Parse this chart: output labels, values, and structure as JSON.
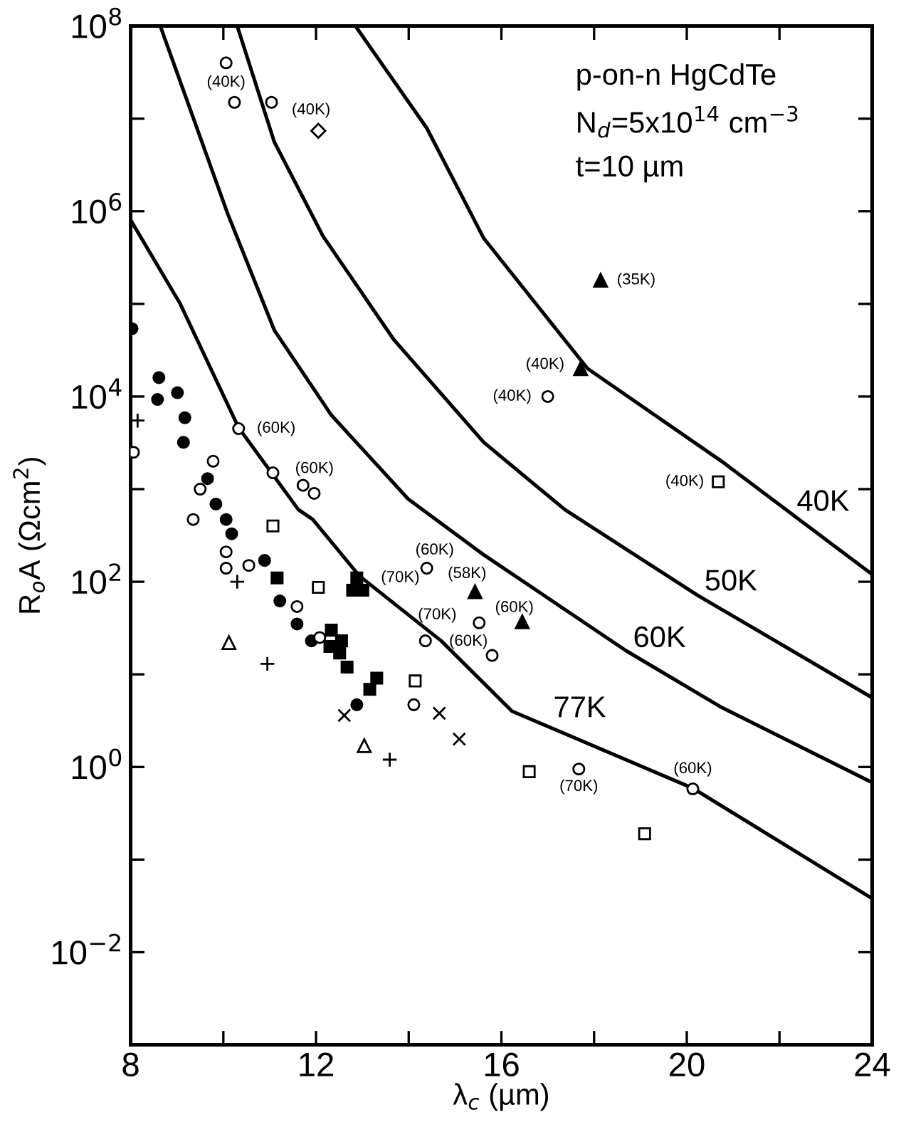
{
  "chart_data": {
    "type": "scatter",
    "xlabel": "λ$_{c}$ (µm)",
    "ylabel": "R$_{o}$A (Ωcm$^{2}$)",
    "log": "y",
    "grid": false,
    "xlim": [
      8,
      24
    ],
    "ylim": [
      0.001,
      100000000
    ],
    "xticks": [
      8,
      {
        "value": 10,
        "label": null
      },
      12,
      {
        "value": 14,
        "label": null
      },
      16,
      {
        "value": 18,
        "label": null
      },
      20,
      {
        "value": 22,
        "label": null
      },
      24
    ],
    "yticks": [
      {
        "value": 0.001,
        "label": null
      },
      {
        "value": 0.01,
        "label": "10$^{−2}$"
      },
      {
        "value": 0.1,
        "label": null
      },
      {
        "value": 1,
        "label": "10$^{0}$"
      },
      {
        "value": 10,
        "label": null
      },
      {
        "value": 100,
        "label": "10$^{2}$"
      },
      {
        "value": 1000,
        "label": null
      },
      {
        "value": 10000,
        "label": "10$^{4}$"
      },
      {
        "value": 100000,
        "label": null
      },
      {
        "value": 1000000,
        "label": "10$^{6}$"
      },
      {
        "value": 10000000,
        "label": null
      },
      {
        "value": 100000000,
        "label": "10$^{8}$"
      }
    ],
    "series": [
      {
        "type": "line",
        "color": "#000000",
        "marker": "none",
        "line_style": "solid",
        "x": [
          8.03,
          9.07,
          10.33,
          11.62,
          11.93,
          12.94,
          14.7,
          16.23,
          20.13,
          24
        ],
        "values": [
          760000,
          100000,
          4600,
          600,
          470,
          115,
          23,
          4.0,
          0.59,
          0.038
        ]
      },
      {
        "type": "line",
        "color": "#000000",
        "marker": "none",
        "line_style": "solid",
        "x": [
          8.64,
          10.09,
          11.1,
          12.33,
          13.99,
          15.62,
          18.69,
          20.75,
          24
        ],
        "values": [
          100000000,
          950000,
          52000,
          6300,
          780,
          195,
          18,
          4.4,
          0.68
        ]
      },
      {
        "type": "line",
        "color": "#000000",
        "marker": "none",
        "line_style": "solid",
        "x": [
          10.3,
          11.1,
          12.15,
          13.68,
          15.62,
          17.37,
          20.22,
          24
        ],
        "values": [
          100000000,
          5600000,
          540000,
          41000,
          3200,
          600,
          72,
          5.6
        ]
      },
      {
        "type": "line",
        "color": "#000000",
        "marker": "none",
        "line_style": "solid",
        "x": [
          12.85,
          14.39,
          15.62,
          17.86,
          20.75,
          24
        ],
        "values": [
          100000000,
          7900000,
          510000,
          20000,
          2000,
          120
        ]
      },
      {
        "color": "#000000",
        "marker": "circle-open",
        "x": [
          10.06,
          10.24,
          11.04,
          8.06,
          10.33,
          11.07,
          11.72,
          11.96,
          9.78,
          9.5,
          9.35,
          10.06,
          10.06,
          10.55,
          11.59,
          12.08,
          14.39,
          14.36,
          14.11,
          15.52,
          15.8,
          17.0,
          17.67,
          20.13
        ],
        "values": [
          40000000,
          15000000,
          15000000,
          2500,
          4500,
          1500,
          1100,
          900,
          2000,
          1000,
          470,
          210,
          140,
          150,
          54,
          25,
          140,
          23,
          4.7,
          36,
          16,
          10000,
          0.95,
          0.58
        ]
      },
      {
        "color": "#000000",
        "marker": "circle",
        "x": [
          8.03,
          8.61,
          8.58,
          9.01,
          9.17,
          9.14,
          9.66,
          9.84,
          10.06,
          10.18,
          10.89,
          11.22,
          11.59,
          11.9,
          12.88
        ],
        "values": [
          54000,
          16000,
          9300,
          11000,
          5900,
          3200,
          1300,
          690,
          470,
          330,
          170,
          62,
          35,
          23,
          4.7
        ]
      },
      {
        "color": "#000000",
        "marker": "square",
        "x": [
          11.16,
          12.88,
          12.79,
          13.01,
          12.33,
          12.55,
          12.3,
          12.51,
          12.67,
          13.31,
          13.16
        ],
        "values": [
          110,
          110,
          81,
          81,
          30,
          23,
          20,
          17,
          12,
          9.1,
          6.9
        ]
      },
      {
        "color": "#000000",
        "marker": "square-open",
        "x": [
          11.07,
          12.05,
          14.14,
          20.68,
          16.6,
          19.09
        ],
        "values": [
          400,
          87,
          8.5,
          1200,
          0.89,
          0.19
        ]
      },
      {
        "color": "#000000",
        "marker": "triangle",
        "x": [
          15.43,
          18.14,
          17.71,
          16.45
        ],
        "values": [
          78,
          180000,
          20000,
          37
        ]
      },
      {
        "color": "#000000",
        "marker": "triangle-open",
        "x": [
          10.12,
          13.04
        ],
        "values": [
          22,
          1.7
        ]
      },
      {
        "color": "#000000",
        "marker": "plus",
        "x": [
          8.15,
          10.3,
          10.95,
          13.59
        ],
        "values": [
          5500,
          100,
          13,
          1.2
        ]
      },
      {
        "color": "#000000",
        "marker": "cross",
        "x": [
          12.61,
          14.66,
          15.09
        ],
        "values": [
          3.6,
          3.8,
          2.0
        ]
      },
      {
        "color": "#000000",
        "marker": "diamond-open",
        "x": [
          12.05
        ],
        "values": [
          7400000
        ]
      }
    ],
    "annotations": [
      "p-on-n HgCdTe",
      "N$_{d}$=5x10$^{14}$ cm$^{−3}$",
      "t=10 µm",
      {
        "text": "40K",
        "x": 22.77,
        "y": 355
      },
      {
        "text": "50K",
        "x": 20.78,
        "y": 49
      },
      {
        "text": "60K",
        "x": 19.24,
        "y": 12
      },
      {
        "text": "77K",
        "x": 17.52,
        "y": 2.1
      },
      {
        "text": "(40K)",
        "x": 10.06,
        "y": 40000000
      },
      {
        "text": "(40K)",
        "x": 11.04,
        "y": 15000000
      },
      {
        "text": "(60K)",
        "x": 10.33,
        "y": 4500
      },
      {
        "text": "(60K)",
        "x": 11.07,
        "y": 1500
      },
      {
        "text": "(60K)",
        "x": 14.39,
        "y": 140
      },
      {
        "text": "(70K)",
        "x": 12.88,
        "y": 110
      },
      {
        "text": "(58K)",
        "x": 15.43,
        "y": 78
      },
      {
        "text": "(70K)",
        "x": 14.36,
        "y": 23
      },
      {
        "text": "(60K)",
        "x": 15.8,
        "y": 16
      },
      {
        "text": "(60K)",
        "x": 16.45,
        "y": 37
      },
      {
        "text": "(35K)",
        "x": 18.14,
        "y": 180000
      },
      {
        "text": "(40K)",
        "x": 17.71,
        "y": 20000
      },
      {
        "text": "(40K)",
        "x": 17.0,
        "y": 10000
      },
      {
        "text": "(40K)",
        "x": 20.68,
        "y": 1200
      },
      {
        "text": "(70K)",
        "x": 17.67,
        "y": 0.95
      },
      {
        "text": "(60K)",
        "x": 20.13,
        "y": 0.58
      }
    ]
  }
}
